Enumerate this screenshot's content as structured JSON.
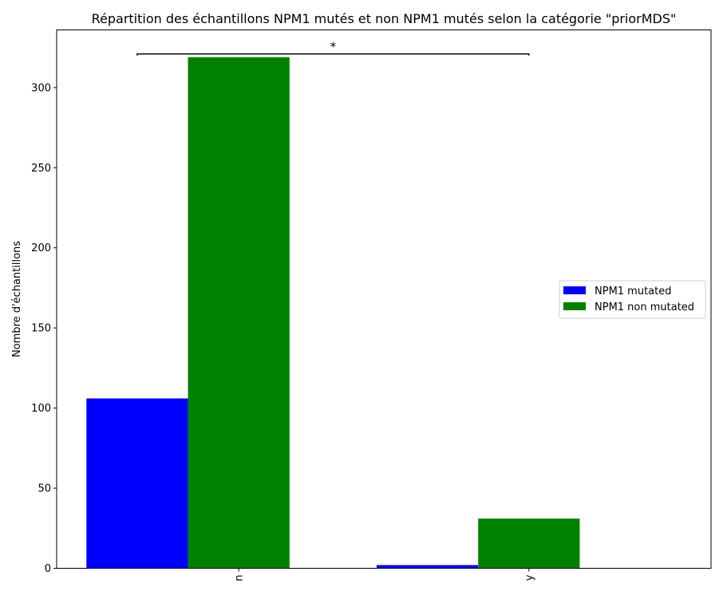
{
  "chart_data": {
    "type": "bar",
    "title": "Répartition des échantillons NPM1 mutés et non NPM1 mutés selon la catégorie \"priorMDS\"",
    "xlabel": "",
    "ylabel": "Nombre d'échantillons",
    "categories": [
      "n",
      "y"
    ],
    "series": [
      {
        "name": "NPM1 mutated",
        "color": "#0000ff",
        "values": [
          106,
          2
        ]
      },
      {
        "name": "NPM1 non mutated",
        "color": "#008000",
        "values": [
          319,
          31
        ]
      }
    ],
    "ylim": [
      0,
      336
    ],
    "yticks": [
      0,
      50,
      100,
      150,
      200,
      250,
      300
    ],
    "grid": false,
    "legend_position": "center-right",
    "annotation": {
      "text": "*",
      "type": "significance-bracket",
      "between": [
        "n",
        "y"
      ],
      "level": 321
    }
  }
}
